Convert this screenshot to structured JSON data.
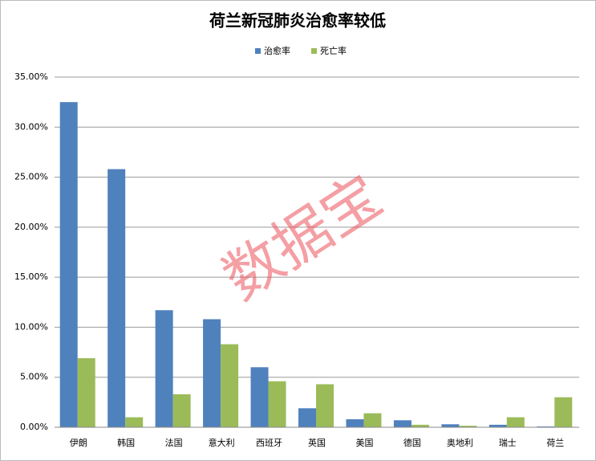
{
  "chart_data": {
    "type": "bar",
    "title": "荷兰新冠肺炎治愈率较低",
    "categories": [
      "伊朗",
      "韩国",
      "法国",
      "意大利",
      "西班牙",
      "英国",
      "美国",
      "德国",
      "奥地利",
      "瑞士",
      "荷兰"
    ],
    "series": [
      {
        "name": "治愈率",
        "color": "#4f81bd",
        "values": [
          32.5,
          25.8,
          11.7,
          10.8,
          6.0,
          1.9,
          0.8,
          0.7,
          0.3,
          0.25,
          0.08
        ]
      },
      {
        "name": "死亡率",
        "color": "#9bbb59",
        "values": [
          6.9,
          1.0,
          3.3,
          8.3,
          4.6,
          4.3,
          1.4,
          0.25,
          0.15,
          1.0,
          3.0
        ]
      }
    ],
    "ylim": [
      0,
      35
    ],
    "yticks": [
      {
        "value": 0,
        "label": "0.00%"
      },
      {
        "value": 5,
        "label": "5.00%"
      },
      {
        "value": 10,
        "label": "10.00%"
      },
      {
        "value": 15,
        "label": "15.00%"
      },
      {
        "value": 20,
        "label": "20.00%"
      },
      {
        "value": 25,
        "label": "25.00%"
      },
      {
        "value": 30,
        "label": "30.00%"
      },
      {
        "value": 35,
        "label": "35.00%"
      }
    ],
    "grid": true,
    "legend": "top",
    "watermark": "数据宝"
  }
}
